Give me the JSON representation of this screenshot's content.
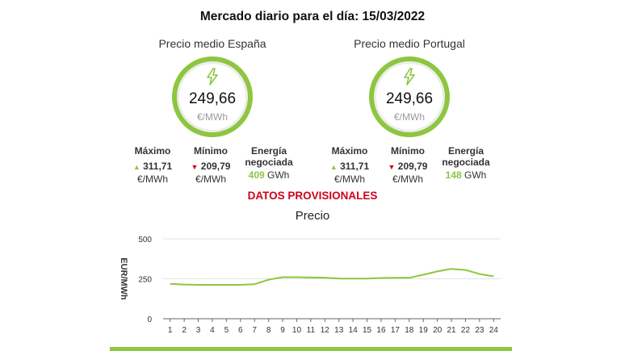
{
  "header": {
    "title": "Mercado diario para el día: 15/03/2022"
  },
  "spain": {
    "title": "Precio medio España",
    "avg_value": "249,66",
    "avg_unit": "€/MWh",
    "max_label": "Máximo",
    "max_value": "311,71",
    "max_unit": "€/MWh",
    "min_label": "Mínimo",
    "min_value": "209,79",
    "min_unit": "€/MWh",
    "energy_label_1": "Energía",
    "energy_label_2": "negociada",
    "energy_value": "409",
    "energy_unit": "GWh"
  },
  "portugal": {
    "title": "Precio medio Portugal",
    "avg_value": "249,66",
    "avg_unit": "€/MWh",
    "max_label": "Máximo",
    "max_value": "311,71",
    "max_unit": "€/MWh",
    "min_label": "Mínimo",
    "min_value": "209,79",
    "min_unit": "€/MWh",
    "energy_label_1": "Energía",
    "energy_label_2": "negociada",
    "energy_value": "148",
    "energy_unit": "GWh"
  },
  "status": {
    "provisional": "DATOS PROVISIONALES"
  },
  "colors": {
    "accent": "#8dc63f",
    "alert": "#d0021b"
  },
  "icons": {
    "price": "lightning-bolt-icon",
    "up": "triangle-up-icon",
    "down": "triangle-down-icon"
  },
  "chart_data": {
    "type": "line",
    "title": "Precio",
    "xlabel": "",
    "ylabel": "EUR/MWh",
    "x": [
      1,
      2,
      3,
      4,
      5,
      6,
      7,
      8,
      9,
      10,
      11,
      12,
      13,
      14,
      15,
      16,
      17,
      18,
      19,
      20,
      21,
      22,
      23,
      24
    ],
    "series": [
      {
        "values": [
          218,
          214,
          212,
          212,
          212,
          212,
          216,
          244,
          260,
          260,
          258,
          257,
          251,
          251,
          251,
          255,
          256,
          256,
          275,
          296,
          312,
          305,
          280,
          265
        ]
      }
    ],
    "yticks": [
      0,
      250,
      500
    ],
    "ylim": [
      0,
      500
    ],
    "grid": true,
    "legend": "none"
  }
}
